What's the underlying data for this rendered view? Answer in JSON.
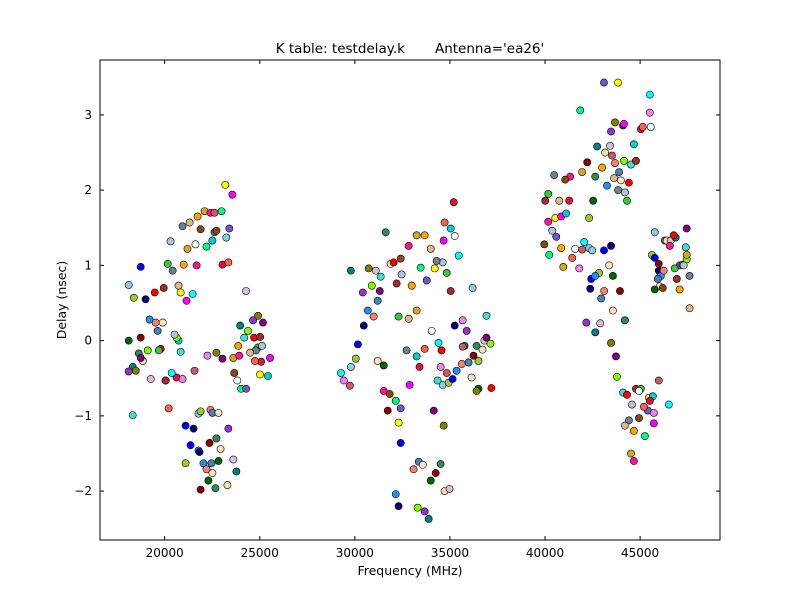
{
  "chart_data": {
    "type": "scatter",
    "title": "K table: testdelay.k       Antenna='ea26'",
    "xlabel": "Frequency (MHz)",
    "ylabel": "Delay (nsec)",
    "xlim": [
      16600,
      49200
    ],
    "ylim": [
      -2.65,
      3.73
    ],
    "xticks": [
      20000,
      25000,
      30000,
      35000,
      40000,
      45000
    ],
    "yticks": [
      -2,
      -1,
      0,
      1,
      2,
      3
    ],
    "grid": false,
    "marker_edge_color": "#000000",
    "palette": [
      "#87ceeb",
      "#708090",
      "#4682b4",
      "#00ff7f",
      "#d8bfd8",
      "#ff6347",
      "#40e0d0",
      "#9acd32",
      "#deb887",
      "#ffe4c4",
      "#6a5acd",
      "#008080",
      "#f0ffff",
      "#ff0000",
      "#0000ff",
      "#ffa500",
      "#006400",
      "#ffff00",
      "#9932cc",
      "#00ffff",
      "#a52a2a",
      "#000080",
      "#daa520",
      "#8b0000",
      "#ff00ff",
      "#808000",
      "#ee82ee",
      "#32cd32",
      "#1e90ff",
      "#ff1493",
      "#2e8b57",
      "#00ced1",
      "#800080",
      "#cd5c5c",
      "#b0c4de",
      "#fa8072",
      "#8b4513",
      "#f5deb3",
      "#dc143c",
      "#7fff00"
    ],
    "points": [
      [
        18110,
        0.74
      ],
      [
        18380,
        0.57
      ],
      [
        18740,
        0.98
      ],
      [
        19000,
        0.55
      ],
      [
        19210,
        0.28
      ],
      [
        19530,
        0.24
      ],
      [
        19630,
        0.13
      ],
      [
        19900,
        0.24
      ],
      [
        18110,
        0.0
      ],
      [
        18740,
        0.04
      ],
      [
        18640,
        -0.17
      ],
      [
        18850,
        -0.27
      ],
      [
        19270,
        -0.51
      ],
      [
        18320,
        -0.35
      ],
      [
        18110,
        -0.41
      ],
      [
        18480,
        -0.4
      ],
      [
        18740,
        -0.23
      ],
      [
        19110,
        -0.13
      ],
      [
        18320,
        -0.99
      ],
      [
        19480,
        0.64
      ],
      [
        19950,
        0.7
      ],
      [
        20160,
        1.02
      ],
      [
        20310,
        1.32
      ],
      [
        20420,
        0.93
      ],
      [
        20730,
        0.73
      ],
      [
        21000,
        1.01
      ],
      [
        21200,
        1.22
      ],
      [
        21680,
        1.0
      ],
      [
        21890,
        1.48
      ],
      [
        22200,
        1.25
      ],
      [
        22620,
        1.44
      ],
      [
        20840,
        0.64
      ],
      [
        21150,
        0.53
      ],
      [
        20730,
        0.0
      ],
      [
        20630,
        -0.49
      ],
      [
        20210,
        -0.9
      ],
      [
        20050,
        -0.53
      ],
      [
        20370,
        -0.43
      ],
      [
        20940,
        -0.51
      ],
      [
        21570,
        -0.4
      ],
      [
        21780,
        -0.97
      ],
      [
        21890,
        -0.94
      ],
      [
        21100,
        -1.13
      ],
      [
        21520,
        -1.17
      ],
      [
        21780,
        -1.46
      ],
      [
        22410,
        -0.92
      ],
      [
        22510,
        -0.96
      ],
      [
        22830,
        -0.96
      ],
      [
        22300,
        -1.86
      ],
      [
        21890,
        -1.98
      ],
      [
        22670,
        -1.96
      ],
      [
        23300,
        -1.92
      ],
      [
        23610,
        -1.58
      ],
      [
        23770,
        -1.74
      ],
      [
        23350,
        -1.17
      ],
      [
        22720,
        -0.16
      ],
      [
        23040,
        -0.24
      ],
      [
        20630,
        0.04
      ],
      [
        20840,
        -0.15
      ],
      [
        19790,
        -0.11
      ],
      [
        20050,
        -0.53
      ],
      [
        19690,
        -0.13
      ],
      [
        20520,
        0.08
      ],
      [
        20940,
        1.52
      ],
      [
        21310,
        1.57
      ],
      [
        21730,
        1.65
      ],
      [
        22100,
        1.72
      ],
      [
        22410,
        1.7
      ],
      [
        22720,
        1.46
      ],
      [
        22990,
        1.72
      ],
      [
        23400,
        1.49
      ],
      [
        23190,
        2.07
      ],
      [
        23560,
        1.94
      ],
      [
        22510,
        1.33
      ],
      [
        23040,
        1.01
      ],
      [
        23350,
        1.04
      ],
      [
        21620,
        1.28
      ],
      [
        21470,
        0.62
      ],
      [
        22250,
        -0.2
      ],
      [
        22620,
        1.7
      ],
      [
        23240,
        1.37
      ],
      [
        21100,
        -1.63
      ],
      [
        21360,
        -1.39
      ],
      [
        21830,
        -1.48
      ],
      [
        22040,
        -1.63
      ],
      [
        22200,
        -1.71
      ],
      [
        22460,
        -1.63
      ],
      [
        22510,
        -1.76
      ],
      [
        22830,
        -1.6
      ],
      [
        22360,
        -1.36
      ],
      [
        22720,
        -1.3
      ],
      [
        22940,
        -1.44
      ],
      [
        24280,
        0.66
      ],
      [
        23970,
        0.2
      ],
      [
        24650,
        0.27
      ],
      [
        24910,
        0.33
      ],
      [
        25170,
        0.24
      ],
      [
        24380,
        0.13
      ],
      [
        24180,
        0.04
      ],
      [
        24700,
        0.04
      ],
      [
        25020,
        0.05
      ],
      [
        24910,
        -0.09
      ],
      [
        25120,
        -0.07
      ],
      [
        24800,
        -0.13
      ],
      [
        24490,
        -0.16
      ],
      [
        23870,
        -0.07
      ],
      [
        23610,
        -0.23
      ],
      [
        23920,
        -0.2
      ],
      [
        23660,
        -0.43
      ],
      [
        24020,
        -0.64
      ],
      [
        24280,
        -0.64
      ],
      [
        25010,
        -0.45
      ],
      [
        25540,
        -0.23
      ],
      [
        25430,
        -0.47
      ],
      [
        25070,
        -0.28
      ],
      [
        24750,
        -0.27
      ],
      [
        23820,
        -0.53
      ],
      [
        29270,
        -0.43
      ],
      [
        29420,
        -0.53
      ],
      [
        29740,
        -0.6
      ],
      [
        29790,
        -0.35
      ],
      [
        30050,
        -0.24
      ],
      [
        30160,
        -0.05
      ],
      [
        30470,
        0.2
      ],
      [
        30680,
        0.4
      ],
      [
        30990,
        0.32
      ],
      [
        31200,
        0.53
      ],
      [
        31200,
        -0.27
      ],
      [
        31520,
        -0.33
      ],
      [
        31730,
        -0.93
      ],
      [
        31620,
        1.44
      ],
      [
        31880,
        1.02
      ],
      [
        31100,
        0.93
      ],
      [
        29790,
        0.93
      ],
      [
        30420,
        0.64
      ],
      [
        30730,
        0.96
      ],
      [
        31310,
        0.66
      ],
      [
        30890,
        0.73
      ],
      [
        31360,
        0.85
      ],
      [
        32040,
        1.04
      ],
      [
        32200,
        0.76
      ],
      [
        32300,
        0.32
      ],
      [
        32460,
        0.88
      ],
      [
        32720,
        -0.13
      ],
      [
        32830,
        0.29
      ],
      [
        32990,
        0.73
      ],
      [
        33250,
        0.4
      ],
      [
        31520,
        -0.67
      ],
      [
        31830,
        -0.71
      ],
      [
        32150,
        -0.8
      ],
      [
        32410,
        -0.9
      ],
      [
        32300,
        -1.09
      ],
      [
        32880,
        -0.59
      ],
      [
        33250,
        -0.21
      ],
      [
        33400,
        -0.35
      ],
      [
        33670,
        -0.11
      ],
      [
        34040,
        0.13
      ],
      [
        34400,
        -0.03
      ],
      [
        34510,
        -0.35
      ],
      [
        34830,
        -0.43
      ],
      [
        34620,
        -0.59
      ],
      [
        34930,
        -0.56
      ],
      [
        35140,
        -0.51
      ],
      [
        35250,
        0.2
      ],
      [
        35350,
        -0.4
      ],
      [
        35620,
        -0.31
      ],
      [
        35980,
        -0.29
      ],
      [
        36140,
        -0.49
      ],
      [
        36500,
        -0.64
      ],
      [
        36240,
        -0.2
      ],
      [
        36400,
        -0.07
      ],
      [
        36710,
        -0.12
      ],
      [
        36810,
        0.0
      ],
      [
        35770,
        -0.07
      ],
      [
        35880,
        0.13
      ],
      [
        36400,
        -0.67
      ],
      [
        36920,
        0.04
      ],
      [
        37130,
        -0.04
      ],
      [
        36920,
        0.33
      ],
      [
        37180,
        -0.63
      ],
      [
        35040,
        0.66
      ],
      [
        34830,
        0.9
      ],
      [
        34620,
        1.04
      ],
      [
        34300,
        1.06
      ],
      [
        33990,
        1.22
      ],
      [
        33670,
        1.4
      ],
      [
        33250,
        1.4
      ],
      [
        32830,
        1.26
      ],
      [
        32410,
        1.09
      ],
      [
        33460,
        0.97
      ],
      [
        33780,
        0.8
      ],
      [
        34200,
        0.96
      ],
      [
        34670,
        1.33
      ],
      [
        35040,
        1.49
      ],
      [
        35200,
        1.84
      ],
      [
        34720,
        1.57
      ],
      [
        35250,
        1.39
      ],
      [
        35460,
        1.13
      ],
      [
        35670,
        0.27
      ],
      [
        35670,
        -0.08
      ],
      [
        36190,
        0.7
      ],
      [
        36500,
        -0.27
      ],
      [
        32410,
        -1.36
      ],
      [
        32300,
        -2.2
      ],
      [
        32150,
        -2.04
      ],
      [
        33090,
        -1.71
      ],
      [
        33360,
        -1.61
      ],
      [
        33570,
        -1.65
      ],
      [
        33990,
        -1.86
      ],
      [
        34250,
        -1.76
      ],
      [
        34510,
        -1.64
      ],
      [
        34720,
        -2.0
      ],
      [
        34980,
        -1.97
      ],
      [
        33880,
        -2.37
      ],
      [
        33670,
        -2.27
      ],
      [
        34670,
        -1.13
      ],
      [
        34150,
        -0.93
      ],
      [
        33300,
        -2.22
      ],
      [
        34350,
        -0.53
      ],
      [
        34560,
        -0.13
      ],
      [
        40010,
        1.86
      ],
      [
        40170,
        1.95
      ],
      [
        40380,
        1.46
      ],
      [
        40480,
        2.2
      ],
      [
        40750,
        1.86
      ],
      [
        40850,
        1.23
      ],
      [
        40960,
        0.98
      ],
      [
        40170,
        1.58
      ],
      [
        39960,
        1.28
      ],
      [
        40220,
        1.14
      ],
      [
        40590,
        1.38
      ],
      [
        40540,
        1.63
      ],
      [
        40850,
        1.65
      ],
      [
        41110,
        1.69
      ],
      [
        41270,
        1.86
      ],
      [
        41430,
        1.1
      ],
      [
        41590,
        1.22
      ],
      [
        42060,
        1.31
      ],
      [
        41800,
        0.96
      ],
      [
        41950,
        1.21
      ],
      [
        42320,
        1.23
      ],
      [
        42840,
        0.9
      ],
      [
        43100,
        1.2
      ],
      [
        43470,
        1.26
      ],
      [
        43260,
        2.06
      ],
      [
        43680,
        2.36
      ],
      [
        43890,
        2.24
      ],
      [
        43990,
        2.13
      ],
      [
        42530,
        1.86
      ],
      [
        42220,
        2.37
      ],
      [
        42640,
        2.18
      ],
      [
        43160,
        2.5
      ],
      [
        43420,
        2.59
      ],
      [
        42740,
        2.58
      ],
      [
        43470,
        2.78
      ],
      [
        43680,
        2.9
      ],
      [
        44100,
        2.86
      ],
      [
        44150,
        2.39
      ],
      [
        44520,
        2.34
      ],
      [
        44410,
        2.1
      ],
      [
        44780,
        2.39
      ],
      [
        44310,
        1.86
      ],
      [
        44200,
        1.97
      ],
      [
        43840,
        2.0
      ],
      [
        43630,
        2.16
      ],
      [
        43000,
        2.3
      ],
      [
        41950,
        2.24
      ],
      [
        41320,
        2.18
      ],
      [
        41060,
        2.14
      ],
      [
        41850,
        3.06
      ],
      [
        43100,
        3.43
      ],
      [
        43840,
        3.43
      ],
      [
        44150,
        2.88
      ],
      [
        44670,
        2.61
      ],
      [
        45040,
        2.81
      ],
      [
        45140,
        2.84
      ],
      [
        45560,
        2.84
      ],
      [
        45510,
        3.27
      ],
      [
        45510,
        3.03
      ],
      [
        43520,
        2.46
      ],
      [
        42480,
        1.2
      ],
      [
        42320,
        1.63
      ],
      [
        42430,
        0.82
      ],
      [
        42380,
        0.69
      ],
      [
        42640,
        0.86
      ],
      [
        43110,
        0.66
      ],
      [
        42950,
        0.56
      ],
      [
        43370,
        1.0
      ],
      [
        43570,
        0.86
      ],
      [
        43940,
        0.66
      ],
      [
        44200,
        0.27
      ],
      [
        43570,
        0.4
      ],
      [
        42900,
        0.23
      ],
      [
        42640,
        0.11
      ],
      [
        42170,
        0.24
      ],
      [
        43470,
        -0.03
      ],
      [
        43730,
        -0.21
      ],
      [
        43780,
        -0.48
      ],
      [
        44100,
        -0.69
      ],
      [
        44310,
        -0.72
      ],
      [
        44780,
        -0.64
      ],
      [
        45040,
        -0.64
      ],
      [
        44570,
        -0.85
      ],
      [
        44410,
        -1.06
      ],
      [
        44200,
        -1.13
      ],
      [
        44670,
        -1.2
      ],
      [
        44520,
        -1.5
      ],
      [
        44670,
        -1.6
      ],
      [
        44940,
        -1.03
      ],
      [
        45250,
        -1.27
      ],
      [
        45410,
        -0.93
      ],
      [
        45460,
        -0.76
      ],
      [
        45720,
        -1.1
      ],
      [
        45670,
        -0.74
      ],
      [
        45510,
        -0.8
      ],
      [
        45200,
        -0.88
      ],
      [
        44940,
        -0.67
      ],
      [
        46510,
        -0.85
      ],
      [
        45720,
        -0.96
      ],
      [
        45980,
        -0.53
      ],
      [
        45770,
        1.44
      ],
      [
        45620,
        1.14
      ],
      [
        45770,
        1.1
      ],
      [
        45980,
        0.93
      ],
      [
        46090,
        0.86
      ],
      [
        46240,
        0.93
      ],
      [
        45930,
        0.82
      ],
      [
        46030,
        0.72
      ],
      [
        45770,
        0.68
      ],
      [
        45980,
        1.02
      ],
      [
        46300,
        1.33
      ],
      [
        46400,
        1.33
      ],
      [
        46610,
        1.33
      ],
      [
        46870,
        1.37
      ],
      [
        47080,
        1.0
      ],
      [
        47240,
        1.01
      ],
      [
        47450,
        1.49
      ],
      [
        47450,
        1.08
      ],
      [
        47400,
        1.24
      ],
      [
        46770,
        1.4
      ],
      [
        46930,
        0.82
      ],
      [
        46820,
        0.96
      ],
      [
        47290,
        1.0
      ],
      [
        47600,
        0.86
      ],
      [
        47600,
        0.43
      ],
      [
        47080,
        0.68
      ],
      [
        47450,
        1.14
      ],
      [
        46560,
        1.26
      ],
      [
        46190,
        0.7
      ]
    ]
  }
}
